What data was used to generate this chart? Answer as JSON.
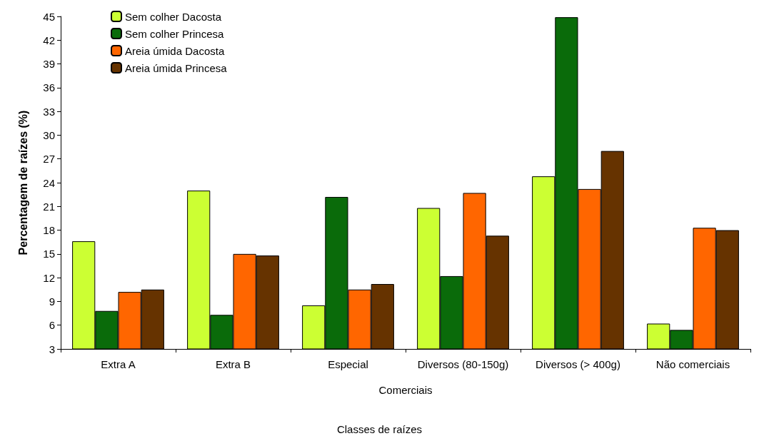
{
  "chart_data": {
    "type": "bar",
    "xlabel": "Comerciais",
    "ylabel": "Percentagem de raízes (%)",
    "annotations": [
      "Classes de raízes"
    ],
    "categories": [
      "Extra A",
      "Extra B",
      "Especial",
      "Diversos (80-150g)",
      "Diversos (> 400g)",
      "Não comerciais"
    ],
    "series": [
      {
        "name": "Sem colher Dacosta",
        "color": "#ccff33",
        "values": [
          16.6,
          23.0,
          8.5,
          20.8,
          24.8,
          6.2
        ]
      },
      {
        "name": "Sem colher Princesa",
        "color": "#0a6b0a",
        "values": [
          7.8,
          7.3,
          22.2,
          12.2,
          44.9,
          5.4
        ]
      },
      {
        "name": "Areia úmida Dacosta",
        "color": "#ff6600",
        "values": [
          10.2,
          15.0,
          10.5,
          22.7,
          23.2,
          18.3
        ]
      },
      {
        "name": "Areia úmida Princesa",
        "color": "#663300",
        "values": [
          10.5,
          14.8,
          11.2,
          17.3,
          28.0,
          18.0
        ]
      }
    ],
    "ylim": [
      3,
      45
    ],
    "yticks": [
      3,
      6,
      9,
      12,
      15,
      18,
      21,
      24,
      27,
      30,
      33,
      36,
      39,
      42,
      45
    ],
    "grid": false,
    "legend": "top left"
  }
}
